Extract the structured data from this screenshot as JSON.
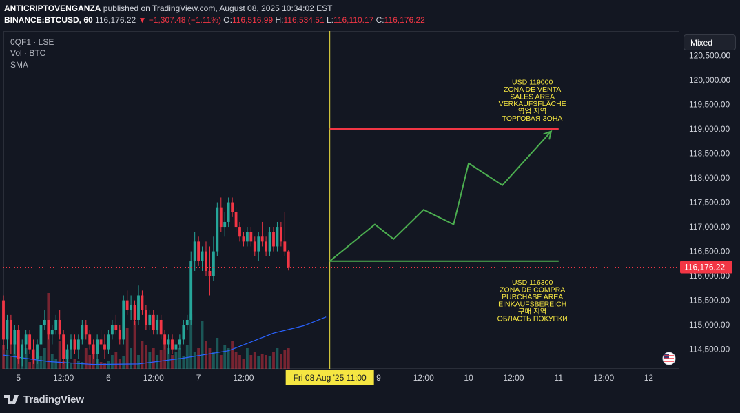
{
  "header": {
    "author": "ANTICRIPTOVENGANZA",
    "published_text": "published on TradingView.com, August 08, 2025 10:34:02 EST",
    "symbol": "BINANCE:BTCUSD, 60",
    "last": "116,176.22",
    "change": "▼ −1,307.48 (−1.11%)",
    "o_label": "O:",
    "o": "116,516.99",
    "h_label": "H:",
    "h": "116,534.51",
    "l_label": "L:",
    "l": "116,110.17",
    "c_label": "C:",
    "c": "116,176.22"
  },
  "legend": [
    "0QF1 · LSE",
    "Vol · BTC",
    "SMA"
  ],
  "scale_mode_button": "Mixed",
  "footer": {
    "brand": "TradingView"
  },
  "colors": {
    "up": "#26a69a",
    "down": "#f23645",
    "sma": "#2962ff",
    "annotation": "#f5e642",
    "resistance": "#f23645",
    "support_and_path": "#4caf50",
    "crosshair": "#f5e642",
    "background": "#131722"
  },
  "chart_data": {
    "type": "candlestick",
    "symbol": "BINANCE:BTCUSD",
    "interval": "60",
    "ylim": [
      114100,
      121000
    ],
    "y_ticks": [
      114500,
      115000,
      115500,
      116000,
      116500,
      117000,
      117500,
      118000,
      118500,
      119000,
      119500,
      120000,
      120500
    ],
    "y_tick_labels": [
      "114,500.00",
      "115,000.00",
      "115,500.00",
      "116,000.00",
      "116,500.00",
      "117,000.00",
      "117,500.00",
      "118,000.00",
      "118,500.00",
      "119,000.00",
      "119,500.00",
      "120,000.00",
      "120,500.00"
    ],
    "x_range": [
      "2025-08-04T20:00",
      "2025-08-12T08:00"
    ],
    "x_ticks": [
      {
        "t": "2025-08-05T00:00",
        "label": "5"
      },
      {
        "t": "2025-08-05T12:00",
        "label": "12:00"
      },
      {
        "t": "2025-08-06T00:00",
        "label": "6"
      },
      {
        "t": "2025-08-06T12:00",
        "label": "12:00"
      },
      {
        "t": "2025-08-07T00:00",
        "label": "7"
      },
      {
        "t": "2025-08-07T12:00",
        "label": "12:00"
      },
      {
        "t": "2025-08-09T00:00",
        "label": "9"
      },
      {
        "t": "2025-08-09T12:00",
        "label": "12:00"
      },
      {
        "t": "2025-08-10T00:00",
        "label": "10"
      },
      {
        "t": "2025-08-10T12:00",
        "label": "12:00"
      },
      {
        "t": "2025-08-11T00:00",
        "label": "11"
      },
      {
        "t": "2025-08-11T12:00",
        "label": "12:00"
      },
      {
        "t": "2025-08-12T00:00",
        "label": "12"
      }
    ],
    "crosshair_time": "2025-08-08T11:00",
    "crosshair_label": "Fri 08 Aug '25   11:00",
    "last_price": 116176.22,
    "last_price_label": "116,176.22",
    "candles_start": "2025-08-04T20:00",
    "candles_interval_hours": 1,
    "candles": [
      [
        115500,
        115600,
        114500,
        114700
      ],
      [
        114700,
        115200,
        114500,
        115100
      ],
      [
        115100,
        115200,
        114400,
        114600
      ],
      [
        114600,
        115000,
        114400,
        114900
      ],
      [
        114900,
        115000,
        114200,
        114300
      ],
      [
        114300,
        114700,
        114150,
        114600
      ],
      [
        114600,
        114900,
        114400,
        114800
      ],
      [
        114800,
        114900,
        114400,
        114500
      ],
      [
        114500,
        114700,
        114200,
        114300
      ],
      [
        114300,
        114700,
        114200,
        114600
      ],
      [
        114600,
        115100,
        114500,
        115000
      ],
      [
        115000,
        115300,
        114900,
        115100
      ],
      [
        115100,
        115100,
        114700,
        114800
      ],
      [
        114800,
        115000,
        114600,
        114900
      ],
      [
        114900,
        115200,
        114800,
        115100
      ],
      [
        115100,
        115300,
        114700,
        114800
      ],
      [
        114800,
        114900,
        114200,
        114300
      ],
      [
        114300,
        114600,
        114100,
        114500
      ],
      [
        114500,
        114800,
        114300,
        114700
      ],
      [
        114700,
        114800,
        114400,
        114500
      ],
      [
        114500,
        114800,
        114300,
        114700
      ],
      [
        114700,
        115100,
        114600,
        115000
      ],
      [
        115000,
        115100,
        114700,
        114800
      ],
      [
        114800,
        114900,
        114500,
        114600
      ],
      [
        114600,
        114700,
        114300,
        114400
      ],
      [
        114400,
        114800,
        114200,
        114700
      ],
      [
        114700,
        114900,
        114500,
        114600
      ],
      [
        114600,
        114800,
        114300,
        114500
      ],
      [
        114500,
        114900,
        114400,
        114800
      ],
      [
        114800,
        115100,
        114700,
        115000
      ],
      [
        115000,
        115200,
        114800,
        114900
      ],
      [
        114900,
        115000,
        114600,
        114700
      ],
      [
        114700,
        115600,
        114600,
        115500
      ],
      [
        115500,
        115700,
        115200,
        115300
      ],
      [
        115300,
        115600,
        115100,
        115400
      ],
      [
        115400,
        115500,
        115000,
        115100
      ],
      [
        115100,
        115800,
        115000,
        115600
      ],
      [
        115600,
        115700,
        115200,
        115300
      ],
      [
        115300,
        115400,
        114900,
        115000
      ],
      [
        115000,
        115300,
        114900,
        115200
      ],
      [
        115200,
        115300,
        114800,
        114900
      ],
      [
        114900,
        115200,
        114800,
        115100
      ],
      [
        115100,
        115200,
        114700,
        114800
      ],
      [
        114800,
        114900,
        114500,
        114600
      ],
      [
        114600,
        114800,
        114400,
        114700
      ],
      [
        114700,
        114800,
        114400,
        114500
      ],
      [
        114500,
        114700,
        114300,
        114600
      ],
      [
        114600,
        114800,
        114500,
        114700
      ],
      [
        114700,
        115100,
        114600,
        115000
      ],
      [
        115000,
        115200,
        114900,
        115100
      ],
      [
        115100,
        116500,
        115000,
        116300
      ],
      [
        116300,
        116900,
        116100,
        116700
      ],
      [
        116700,
        116800,
        116200,
        116300
      ],
      [
        116300,
        116600,
        116100,
        116500
      ],
      [
        116500,
        116700,
        116000,
        116100
      ],
      [
        116100,
        116600,
        115600,
        116000
      ],
      [
        116000,
        116800,
        115900,
        116500
      ],
      [
        116500,
        117500,
        116400,
        117400
      ],
      [
        117400,
        117600,
        116900,
        117000
      ],
      [
        117000,
        117300,
        116800,
        117100
      ],
      [
        117100,
        117600,
        117000,
        117500
      ],
      [
        117500,
        117600,
        117200,
        117300
      ],
      [
        117300,
        117400,
        116900,
        117000
      ],
      [
        117000,
        117100,
        116700,
        116800
      ],
      [
        116800,
        116900,
        116600,
        116700
      ],
      [
        116700,
        117000,
        116600,
        116900
      ],
      [
        116900,
        117000,
        116600,
        116700
      ],
      [
        116700,
        116800,
        116400,
        116500
      ],
      [
        116500,
        116900,
        116300,
        116800
      ],
      [
        116800,
        117100,
        116600,
        116700
      ],
      [
        116700,
        116800,
        116400,
        116500
      ],
      [
        116500,
        117000,
        116400,
        116900
      ],
      [
        116900,
        117000,
        116500,
        116600
      ],
      [
        116600,
        117100,
        116500,
        117000
      ],
      [
        117000,
        117100,
        116600,
        116700
      ],
      [
        116700,
        117300,
        116400,
        116500
      ],
      [
        116500,
        116534.51,
        116110.17,
        116176.22
      ]
    ],
    "volume_bars": [
      35,
      28,
      18,
      40,
      22,
      15,
      30,
      10,
      20,
      25,
      18,
      30,
      110,
      22,
      15,
      40,
      12,
      20,
      8,
      15,
      12,
      10,
      30,
      20,
      25,
      15,
      10,
      8,
      12,
      20,
      25,
      15,
      18,
      60,
      30,
      70,
      20,
      40,
      35,
      25,
      30,
      20,
      28,
      45,
      30,
      20,
      25,
      30,
      18,
      35,
      80,
      25,
      30,
      70,
      40,
      30,
      25,
      45,
      20,
      35,
      30,
      40,
      25,
      20,
      15,
      30,
      20,
      25,
      18,
      22,
      20,
      18,
      25,
      30,
      22,
      28,
      30
    ],
    "sma_points": [
      {
        "t": "2025-08-04T20:00",
        "v": 114380
      },
      {
        "t": "2025-08-05T08:00",
        "v": 114250
      },
      {
        "t": "2025-08-05T20:00",
        "v": 114190
      },
      {
        "t": "2025-08-06T08:00",
        "v": 114200
      },
      {
        "t": "2025-08-06T20:00",
        "v": 114320
      },
      {
        "t": "2025-08-07T08:00",
        "v": 114470
      },
      {
        "t": "2025-08-07T14:00",
        "v": 114650
      },
      {
        "t": "2025-08-07T20:00",
        "v": 114830
      },
      {
        "t": "2025-08-08T04:00",
        "v": 114980
      },
      {
        "t": "2025-08-08T10:00",
        "v": 115160
      }
    ],
    "resistance": {
      "value": 119000,
      "from": "2025-08-08T11:00",
      "to": "2025-08-11T00:00"
    },
    "support": {
      "value": 116300,
      "from": "2025-08-08T11:00",
      "to": "2025-08-11T00:00"
    },
    "projection_path": [
      {
        "t": "2025-08-08T11:00",
        "v": 116300
      },
      {
        "t": "2025-08-08T23:00",
        "v": 117050
      },
      {
        "t": "2025-08-09T04:00",
        "v": 116750
      },
      {
        "t": "2025-08-09T12:00",
        "v": 117350
      },
      {
        "t": "2025-08-09T20:00",
        "v": 117050
      },
      {
        "t": "2025-08-10T00:00",
        "v": 118300
      },
      {
        "t": "2025-08-10T09:00",
        "v": 117850
      },
      {
        "t": "2025-08-10T22:00",
        "v": 118950
      }
    ],
    "annotations": [
      {
        "t": "2025-08-10T17:00",
        "v": 119000,
        "anchor": "above",
        "lines": [
          "USD 119000",
          "ZONA DE VENTA",
          "SALES AREA",
          "VERKAUFSFLÄCHE",
          "영업 지역",
          "ТОРГОВАЯ ЗОНА"
        ]
      },
      {
        "t": "2025-08-10T17:00",
        "v": 116300,
        "anchor": "below",
        "lines": [
          "USD 116300",
          "ZONA DE COMPRA",
          "PURCHASE AREA",
          "EINKAUFSBEREICH",
          "구매 지역",
          "ОБЛАСТЬ ПОКУПКИ"
        ]
      }
    ]
  }
}
